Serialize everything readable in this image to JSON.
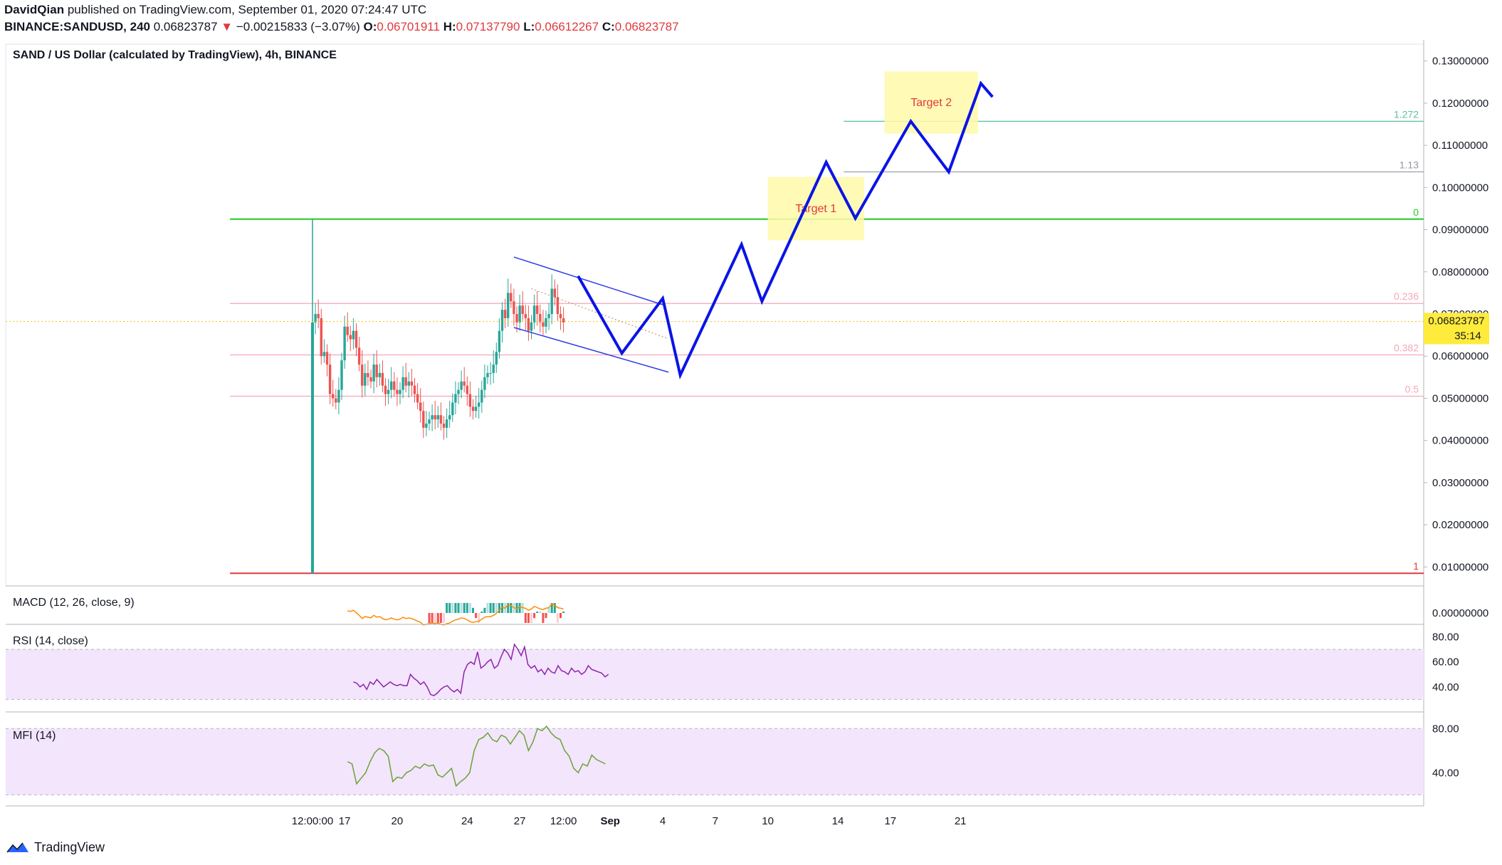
{
  "header": {
    "author": "DavidQian",
    "published_text": "published on TradingView.com, September 01, 2020 07:24:47 UTC",
    "symbol": "BINANCE:SANDUSD, 240",
    "last": "0.06823787",
    "down_arrow": "▼",
    "change": "−0.00215833 (−3.07%)",
    "o_label": "O:",
    "o_value": "0.06701911",
    "h_label": "H:",
    "h_value": "0.07137790",
    "l_label": "L:",
    "l_value": "0.06612267",
    "c_label": "C:",
    "c_value": "0.06823787"
  },
  "footer": {
    "brand": "TradingView"
  },
  "colors": {
    "up": "#26a69a",
    "down": "#ef5350",
    "projection": "#0a14e6",
    "channel": "#2e3ee6",
    "green_level": "#22cc22",
    "red_level": "#e0393e",
    "pink_level": "#f4a6b8",
    "gray_level": "#9598a1",
    "teal_level": "#5bbfa3",
    "target_box": "#fff9a8",
    "target_text": "#e0393e",
    "rsi": "#8e24aa",
    "mfi": "#6aa336",
    "band": "#f3e5fc",
    "macd": "#fb8c00"
  },
  "chart_data": {
    "type": "candlestick",
    "title": "SAND / US Dollar (calculated by TradingView), 4h, BINANCE",
    "price_axis": [
      "0.13000000",
      "0.12000000",
      "0.11000000",
      "0.10000000",
      "0.09000000",
      "0.08000000",
      "0.07000000",
      "0.06000000",
      "0.05000000",
      "0.04000000",
      "0.03000000",
      "0.02000000",
      "0.01000000"
    ],
    "price_axis_values": [
      0.13,
      0.12,
      0.11,
      0.1,
      0.09,
      0.08,
      0.07,
      0.06,
      0.05,
      0.04,
      0.03,
      0.02,
      0.01
    ],
    "ylim": [
      0.0055,
      0.134
    ],
    "time_axis": [
      {
        "label": "12:00:00",
        "i": 0
      },
      {
        "label": "17",
        "i": 11
      },
      {
        "label": "20",
        "i": 29
      },
      {
        "label": "24",
        "i": 53
      },
      {
        "label": "27",
        "i": 71
      },
      {
        "label": "12:00",
        "i": 86
      },
      {
        "label": "Sep",
        "i": 102,
        "bold": true
      },
      {
        "label": "4",
        "i": 120
      },
      {
        "label": "7",
        "i": 138
      },
      {
        "label": "10",
        "i": 156
      },
      {
        "label": "14",
        "i": 180
      },
      {
        "label": "17",
        "i": 198
      },
      {
        "label": "21",
        "i": 222
      }
    ],
    "last_price_label": "0.06823787",
    "countdown_label": "35:14",
    "candles_close": [
      0.068,
      0.07,
      0.069,
      0.06,
      0.061,
      0.058,
      0.051,
      0.05,
      0.049,
      0.052,
      0.059,
      0.067,
      0.065,
      0.064,
      0.066,
      0.062,
      0.058,
      0.053,
      0.056,
      0.055,
      0.054,
      0.058,
      0.055,
      0.056,
      0.053,
      0.051,
      0.052,
      0.054,
      0.052,
      0.051,
      0.052,
      0.055,
      0.053,
      0.054,
      0.053,
      0.051,
      0.049,
      0.047,
      0.043,
      0.044,
      0.045,
      0.046,
      0.045,
      0.046,
      0.044,
      0.043,
      0.045,
      0.046,
      0.049,
      0.051,
      0.052,
      0.054,
      0.053,
      0.051,
      0.048,
      0.047,
      0.048,
      0.049,
      0.052,
      0.055,
      0.056,
      0.056,
      0.058,
      0.061,
      0.066,
      0.071,
      0.069,
      0.075,
      0.073,
      0.07,
      0.068,
      0.072,
      0.07,
      0.069,
      0.066,
      0.068,
      0.072,
      0.07,
      0.068,
      0.067,
      0.069,
      0.07,
      0.076,
      0.074,
      0.07,
      0.069,
      0.068
    ],
    "fib_levels": [
      {
        "label": "0",
        "value": 0.0925,
        "color": "green"
      },
      {
        "label": "0.236",
        "value": 0.0725,
        "color": "pink"
      },
      {
        "label": "0.382",
        "value": 0.0603,
        "color": "pink"
      },
      {
        "label": "0.5",
        "value": 0.0505,
        "color": "pink"
      },
      {
        "label": "1",
        "value": 0.0085,
        "color": "red"
      },
      {
        "label": "1.13",
        "value": 0.1037,
        "color": "gray",
        "from_i": 182
      },
      {
        "label": "1.272",
        "value": 0.1157,
        "color": "teal",
        "from_i": 182
      }
    ],
    "channel": [
      {
        "x0": 69,
        "y0": 0.0835,
        "x1": 120,
        "y1": 0.0722
      },
      {
        "x0": 69,
        "y0": 0.0668,
        "x1": 122,
        "y1": 0.0562
      }
    ],
    "projection_path": [
      {
        "i": 91,
        "v": 0.079
      },
      {
        "i": 106,
        "v": 0.0607
      },
      {
        "i": 120,
        "v": 0.0737
      },
      {
        "i": 126,
        "v": 0.0555
      },
      {
        "i": 147,
        "v": 0.0865
      },
      {
        "i": 154,
        "v": 0.073
      },
      {
        "i": 176,
        "v": 0.106
      },
      {
        "i": 186,
        "v": 0.0927
      },
      {
        "i": 205,
        "v": 0.1157
      },
      {
        "i": 218,
        "v": 0.1037
      },
      {
        "i": 229,
        "v": 0.1247
      },
      {
        "i": 233,
        "v": 0.1215
      }
    ],
    "targets": [
      {
        "label": "Target 1",
        "i0": 156,
        "i1": 189,
        "v0": 0.1025,
        "v1": 0.0875
      },
      {
        "label": "Target 2",
        "i0": 196,
        "i1": 228,
        "v0": 0.1275,
        "v1": 0.1128
      }
    ],
    "indicators": {
      "macd": {
        "title": "MACD (12, 26, close, 9)",
        "axis_label": "0.00000000"
      },
      "rsi": {
        "title": "RSI (14, close)",
        "axis": [
          "80.00",
          "60.00",
          "40.00"
        ],
        "axis_values": [
          80,
          60,
          40
        ],
        "band": [
          30,
          70
        ],
        "values": [
          44,
          43,
          40,
          42,
          38,
          44,
          42,
          46,
          43,
          40,
          42,
          44,
          42,
          41,
          42,
          41,
          41,
          50,
          47,
          45,
          42,
          44,
          40,
          34,
          33,
          35,
          38,
          40,
          41,
          38,
          36,
          38,
          35,
          52,
          58,
          60,
          58,
          68,
          55,
          57,
          60,
          62,
          55,
          57,
          64,
          70,
          67,
          62,
          74,
          70,
          65,
          72,
          58,
          55,
          57,
          52,
          54,
          50,
          55,
          52,
          51,
          57,
          53,
          52,
          50,
          55,
          52,
          53,
          50,
          52,
          57,
          54,
          53,
          52,
          51,
          48,
          50
        ]
      },
      "mfi": {
        "title": "MFI (14)",
        "axis": [
          "80.00",
          "40.00"
        ],
        "axis_values": [
          80,
          40
        ],
        "band": [
          20,
          80
        ],
        "values": [
          50,
          48,
          30,
          35,
          40,
          50,
          58,
          62,
          60,
          55,
          32,
          36,
          35,
          40,
          42,
          46,
          44,
          48,
          46,
          47,
          38,
          36,
          40,
          44,
          28,
          32,
          35,
          40,
          60,
          70,
          72,
          76,
          70,
          68,
          74,
          72,
          66,
          72,
          78,
          74,
          60,
          68,
          80,
          78,
          82,
          76,
          72,
          70,
          60,
          55,
          44,
          40,
          48,
          46,
          56,
          52,
          50,
          48
        ]
      }
    }
  }
}
